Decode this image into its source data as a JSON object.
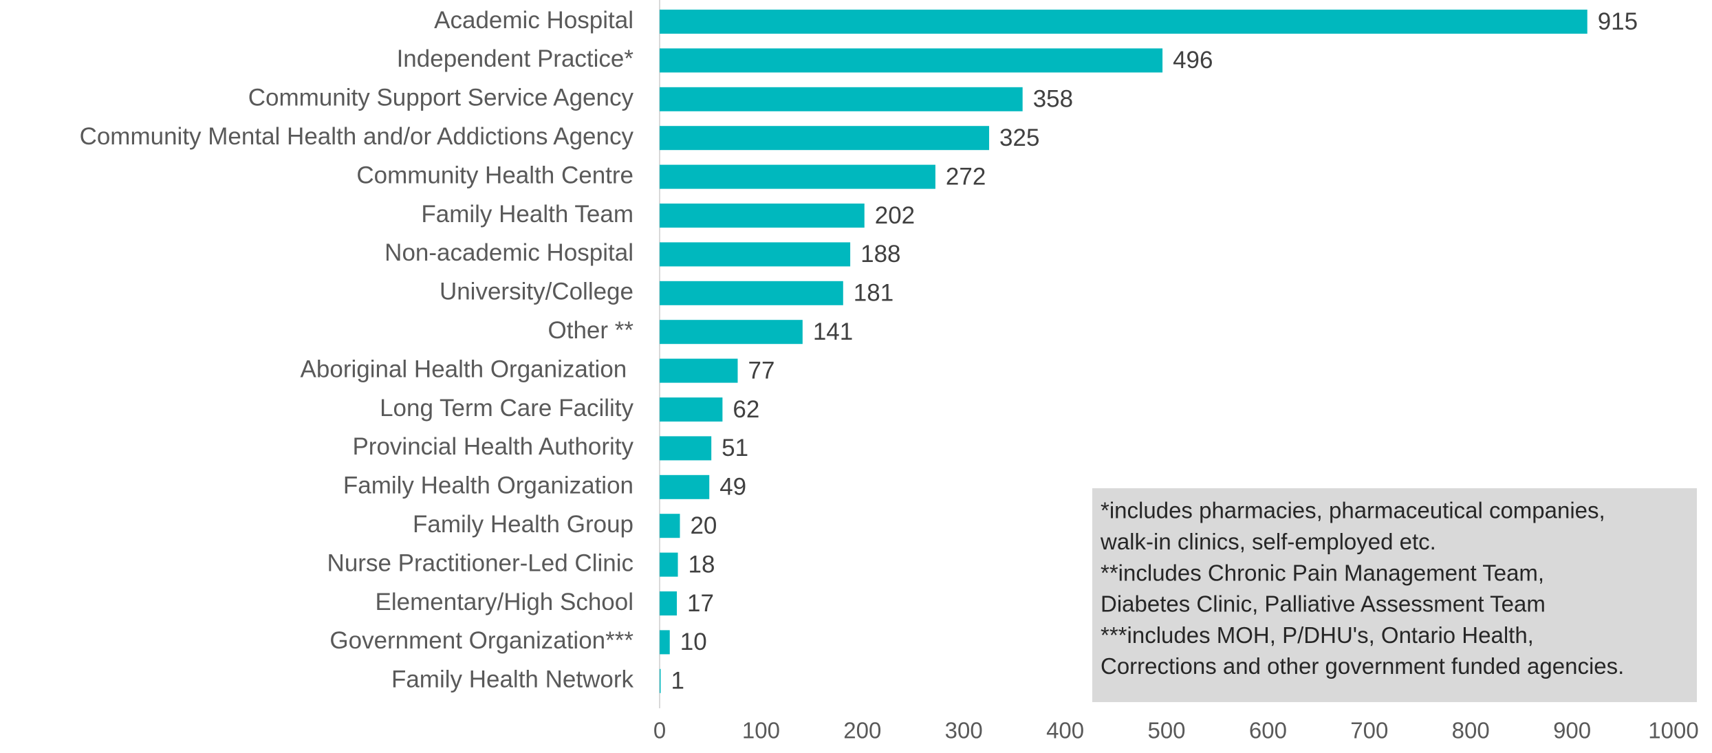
{
  "chart_data": {
    "type": "bar",
    "orientation": "horizontal",
    "color": "#00b8be",
    "categories": [
      "Academic Hospital",
      "Independent Practice*",
      "Community Support Service Agency",
      "Community Mental Health and/or Addictions Agency",
      "Community Health Centre",
      "Family Health Team",
      "Non-academic Hospital",
      "University/College",
      "Other **",
      "Aboriginal Health Organization ",
      "Long Term Care Facility",
      "Provincial Health Authority",
      "Family Health Organization",
      "Family Health Group",
      "Nurse Practitioner-Led Clinic",
      "Elementary/High School",
      "Government Organization***",
      "Family Health Network"
    ],
    "values": [
      915,
      496,
      358,
      325,
      272,
      202,
      188,
      181,
      141,
      77,
      62,
      51,
      49,
      20,
      18,
      17,
      10,
      1
    ],
    "xlim": [
      0,
      1000
    ],
    "xticks": [
      0,
      100,
      200,
      300,
      400,
      500,
      600,
      700,
      800,
      900,
      1000
    ],
    "grid": false,
    "annotations": [
      "*includes pharmacies, pharmaceutical companies,",
      "walk-in clinics, self-employed etc.",
      "**includes Chronic Pain Management Team,",
      "Diabetes Clinic, Palliative Assessment Team",
      "***includes MOH, P/DHU's, Ontario Health,",
      "Corrections and other government funded agencies."
    ]
  }
}
